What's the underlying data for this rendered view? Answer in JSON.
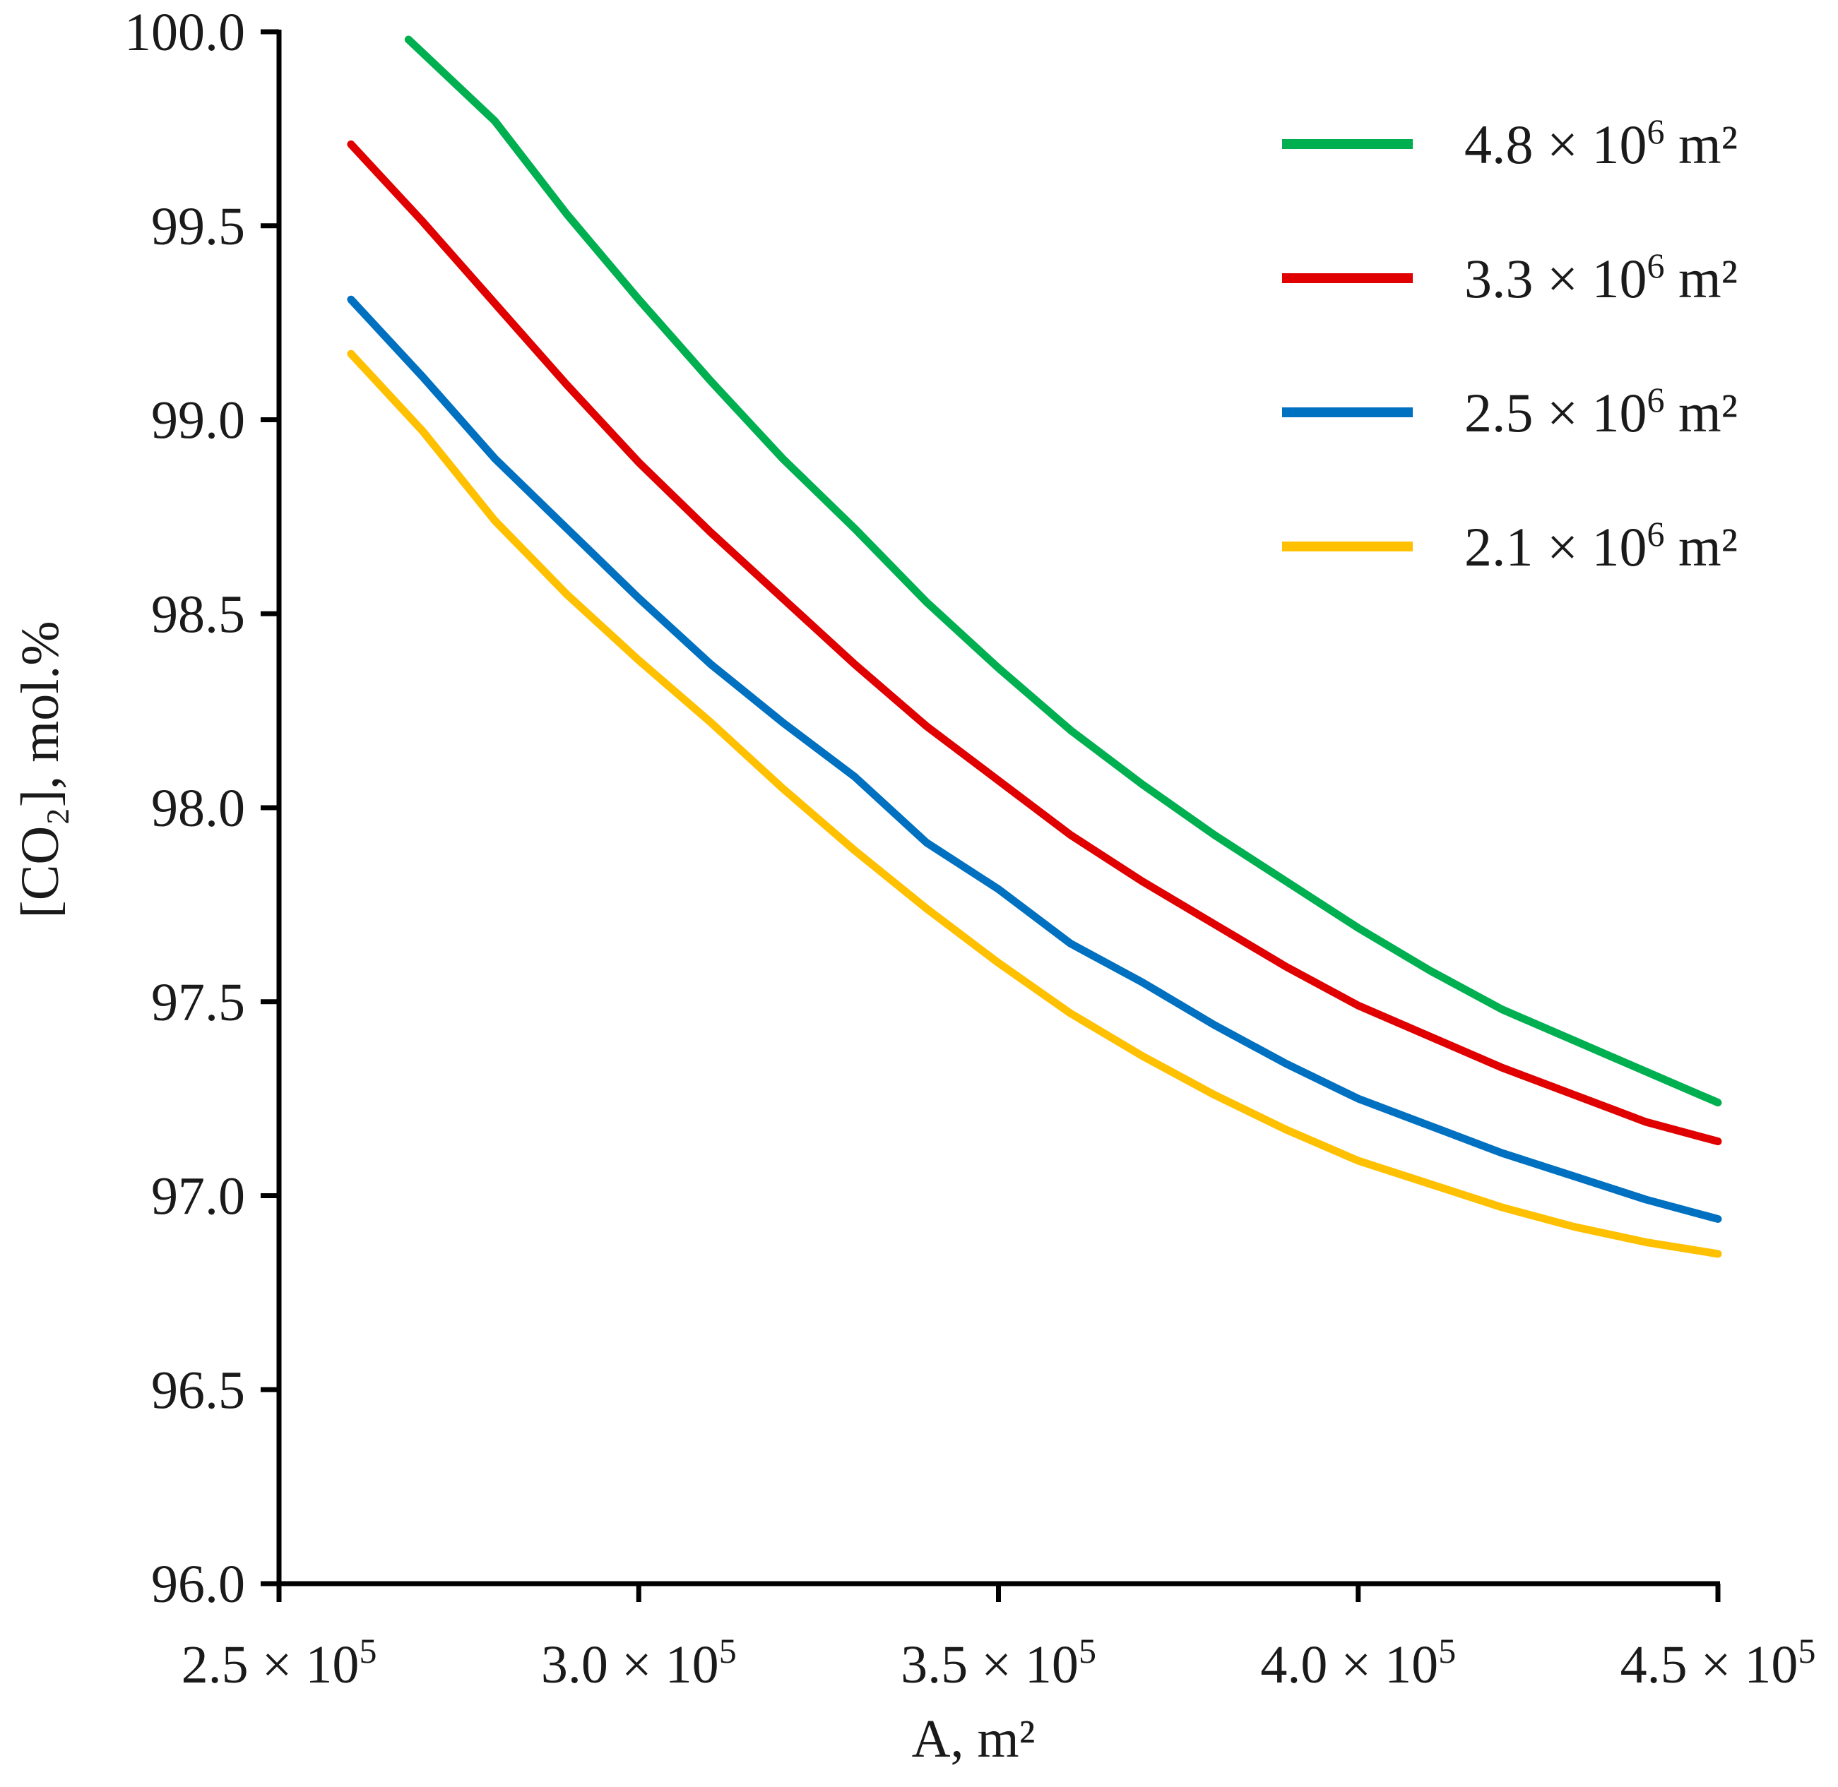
{
  "chart_data": {
    "type": "line",
    "title": "",
    "xlabel": "A, m²",
    "ylabel": "[CO₂], mol.%",
    "xlim": [
      250000,
      450000
    ],
    "ylim": [
      96.0,
      100.0
    ],
    "grid": false,
    "legend_position": "top-right",
    "x_ticks": [
      {
        "value": 250000,
        "label": "2.5 × 10",
        "exp": "5"
      },
      {
        "value": 300000,
        "label": "3.0 × 10",
        "exp": "5"
      },
      {
        "value": 350000,
        "label": "3.5 × 10",
        "exp": "5"
      },
      {
        "value": 400000,
        "label": "4.0 × 10",
        "exp": "5"
      },
      {
        "value": 450000,
        "label": "4.5 × 10",
        "exp": "5"
      }
    ],
    "y_ticks": [
      {
        "value": 96.0,
        "label": "96.0"
      },
      {
        "value": 96.5,
        "label": "96.5"
      },
      {
        "value": 97.0,
        "label": "97.0"
      },
      {
        "value": 97.5,
        "label": "97.5"
      },
      {
        "value": 98.0,
        "label": "98.0"
      },
      {
        "value": 98.5,
        "label": "98.5"
      },
      {
        "value": 99.0,
        "label": "99.0"
      },
      {
        "value": 99.5,
        "label": "99.5"
      },
      {
        "value": 100.0,
        "label": "100.0"
      }
    ],
    "series": [
      {
        "name": "4.8 × 10⁶ m²",
        "label_main": "4.8 × 10",
        "label_exp": "6",
        "label_unit": " m²",
        "color": "#00b050",
        "x": [
          268000,
          280000,
          290000,
          300000,
          310000,
          320000,
          330000,
          340000,
          350000,
          360000,
          370000,
          380000,
          390000,
          400000,
          410000,
          420000,
          430000,
          440000,
          450000
        ],
        "y": [
          99.98,
          99.77,
          99.53,
          99.31,
          99.1,
          98.9,
          98.72,
          98.53,
          98.36,
          98.2,
          98.06,
          97.93,
          97.81,
          97.69,
          97.58,
          97.48,
          97.4,
          97.32,
          97.24
        ]
      },
      {
        "name": "3.3 × 10⁶ m²",
        "label_main": "3.3 × 10",
        "label_exp": "6",
        "label_unit": " m²",
        "color": "#e00000",
        "x": [
          260000,
          270000,
          280000,
          290000,
          300000,
          310000,
          320000,
          330000,
          340000,
          350000,
          360000,
          370000,
          380000,
          390000,
          400000,
          410000,
          420000,
          430000,
          440000,
          450000
        ],
        "y": [
          99.71,
          99.51,
          99.3,
          99.09,
          98.89,
          98.71,
          98.54,
          98.37,
          98.21,
          98.07,
          97.93,
          97.81,
          97.7,
          97.59,
          97.49,
          97.41,
          97.33,
          97.26,
          97.19,
          97.14
        ]
      },
      {
        "name": "2.5 × 10⁶ m²",
        "label_main": "2.5 × 10",
        "label_exp": "6",
        "label_unit": " m²",
        "color": "#0070c0",
        "x": [
          260000,
          270000,
          280000,
          290000,
          300000,
          310000,
          320000,
          330000,
          340000,
          350000,
          360000,
          370000,
          380000,
          390000,
          400000,
          410000,
          420000,
          430000,
          440000,
          450000
        ],
        "y": [
          99.31,
          99.11,
          98.9,
          98.72,
          98.54,
          98.37,
          98.22,
          98.08,
          97.91,
          97.79,
          97.65,
          97.55,
          97.44,
          97.34,
          97.25,
          97.18,
          97.11,
          97.05,
          96.99,
          96.94
        ]
      },
      {
        "name": "2.1 × 10⁶ m²",
        "label_main": "2.1 × 10",
        "label_exp": "6",
        "label_unit": " m²",
        "color": "#ffc000",
        "x": [
          260000,
          270000,
          280000,
          290000,
          300000,
          310000,
          320000,
          330000,
          340000,
          350000,
          360000,
          370000,
          380000,
          390000,
          400000,
          410000,
          420000,
          430000,
          440000,
          450000
        ],
        "y": [
          99.17,
          98.97,
          98.74,
          98.55,
          98.38,
          98.22,
          98.05,
          97.89,
          97.74,
          97.6,
          97.47,
          97.36,
          97.26,
          97.17,
          97.09,
          97.03,
          96.97,
          96.92,
          96.88,
          96.85
        ]
      }
    ]
  }
}
